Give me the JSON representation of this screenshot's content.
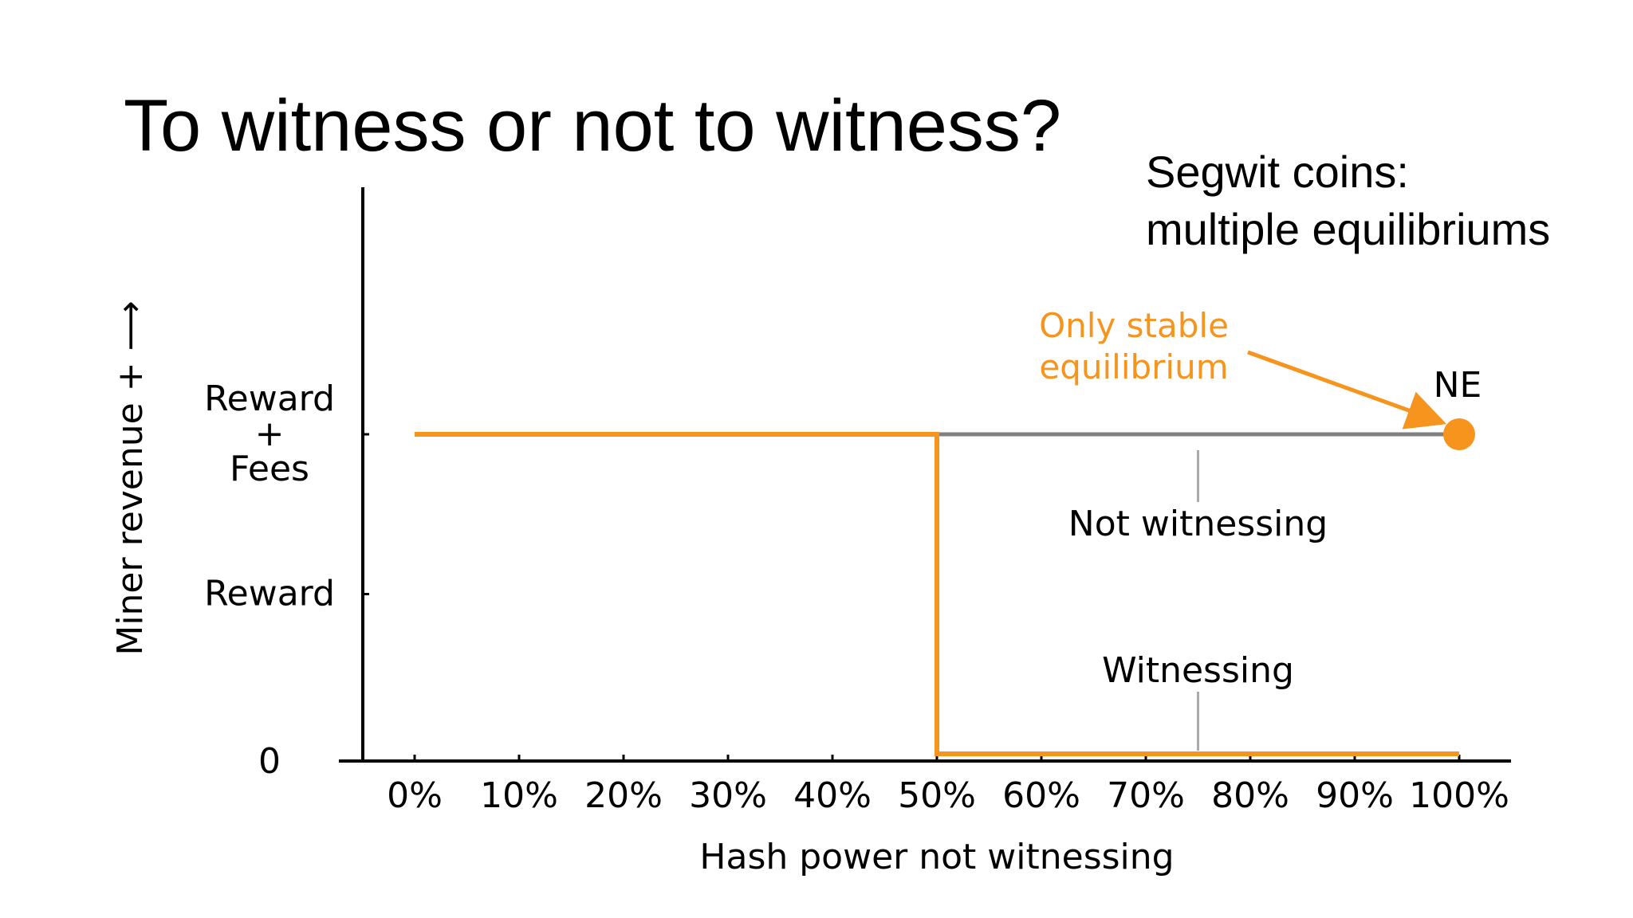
{
  "slide": {
    "title": "To witness or not to witness?",
    "subtitle_line1": "Segwit coins:",
    "subtitle_line2": "multiple equilibriums"
  },
  "chart_data": {
    "type": "line",
    "xlabel": "Hash power not witnessing",
    "ylabel": "Miner revenue  + ⟶",
    "x_ticks": [
      "0%",
      "10%",
      "20%",
      "30%",
      "40%",
      "50%",
      "60%",
      "70%",
      "80%",
      "90%",
      "100%"
    ],
    "xlim": [
      0,
      100
    ],
    "y_levels": [
      {
        "key": "zero",
        "value": 0,
        "label_lines": [
          "0"
        ]
      },
      {
        "key": "reward",
        "value": 1,
        "label_lines": [
          "Reward"
        ]
      },
      {
        "key": "reward_fees",
        "value": 2,
        "label_lines": [
          "Reward",
          "+",
          "Fees"
        ]
      }
    ],
    "ylim": [
      0,
      2
    ],
    "series": [
      {
        "name": "Not witnessing",
        "color": "#808080",
        "points": [
          [
            0,
            2
          ],
          [
            100,
            2
          ]
        ]
      },
      {
        "name": "Witnessing",
        "color": "#f7941d",
        "points": [
          [
            0,
            2
          ],
          [
            50,
            2
          ],
          [
            50,
            0
          ],
          [
            100,
            0
          ]
        ]
      }
    ],
    "annotations": [
      {
        "key": "ne",
        "text": "NE",
        "x": 100,
        "y": 2
      },
      {
        "key": "stable",
        "text_lines": [
          "Only stable",
          "equilibrium"
        ],
        "color": "#f7941d",
        "x": 100,
        "y": 2
      }
    ],
    "grid": false,
    "legend": "none"
  }
}
